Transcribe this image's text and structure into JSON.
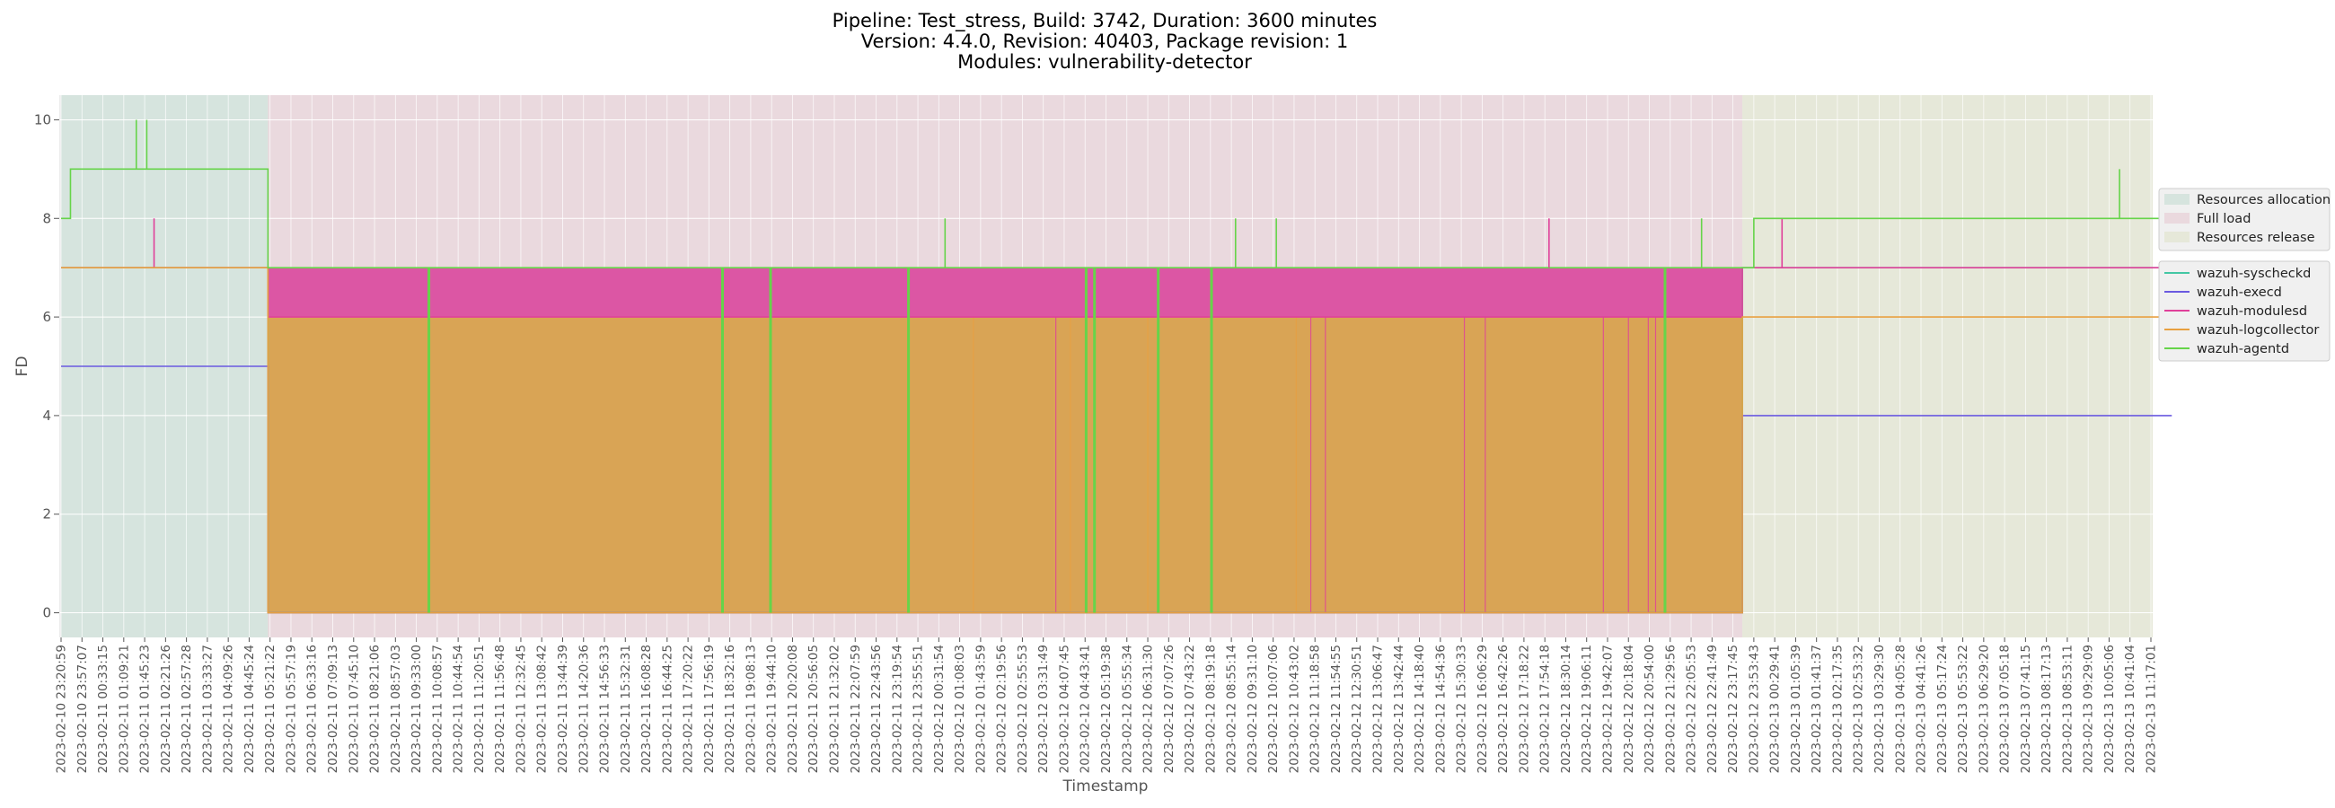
{
  "chart_data": {
    "type": "line",
    "title_lines": [
      "Pipeline: Test_stress, Build: 3742, Duration: 3600 minutes",
      "Version: 4.4.0, Revision: 40403, Package revision: 1",
      "Modules: vulnerability-detector"
    ],
    "xlabel": "Timestamp",
    "ylabel": "FD",
    "ylim": [
      -0.5,
      10.5
    ],
    "yticks": [
      0,
      2,
      4,
      6,
      8,
      10
    ],
    "grid": true,
    "x_tick_labels": [
      "2023-02-10 23:20:59",
      "2023-02-10 23:57:07",
      "2023-02-11 00:33:15",
      "2023-02-11 01:09:21",
      "2023-02-11 01:45:23",
      "2023-02-11 02:21:26",
      "2023-02-11 02:57:28",
      "2023-02-11 03:33:27",
      "2023-02-11 04:09:26",
      "2023-02-11 04:45:24",
      "2023-02-11 05:21:22",
      "2023-02-11 05:57:19",
      "2023-02-11 06:33:16",
      "2023-02-11 07:09:13",
      "2023-02-11 07:45:10",
      "2023-02-11 08:21:06",
      "2023-02-11 08:57:03",
      "2023-02-11 09:33:00",
      "2023-02-11 10:08:57",
      "2023-02-11 10:44:54",
      "2023-02-11 11:20:51",
      "2023-02-11 11:56:48",
      "2023-02-11 12:32:45",
      "2023-02-11 13:08:42",
      "2023-02-11 13:44:39",
      "2023-02-11 14:20:36",
      "2023-02-11 14:56:33",
      "2023-02-11 15:32:31",
      "2023-02-11 16:08:28",
      "2023-02-11 16:44:25",
      "2023-02-11 17:20:22",
      "2023-02-11 17:56:19",
      "2023-02-11 18:32:16",
      "2023-02-11 19:08:13",
      "2023-02-11 19:44:10",
      "2023-02-11 20:20:08",
      "2023-02-11 20:56:05",
      "2023-02-11 21:32:02",
      "2023-02-11 22:07:59",
      "2023-02-11 22:43:56",
      "2023-02-11 23:19:54",
      "2023-02-11 23:55:51",
      "2023-02-12 00:31:54",
      "2023-02-12 01:08:03",
      "2023-02-12 01:43:59",
      "2023-02-12 02:19:56",
      "2023-02-12 02:55:53",
      "2023-02-12 03:31:49",
      "2023-02-12 04:07:45",
      "2023-02-12 04:43:41",
      "2023-02-12 05:19:38",
      "2023-02-12 05:55:34",
      "2023-02-12 06:31:30",
      "2023-02-12 07:07:26",
      "2023-02-12 07:43:22",
      "2023-02-12 08:19:18",
      "2023-02-12 08:55:14",
      "2023-02-12 09:31:10",
      "2023-02-12 10:07:06",
      "2023-02-12 10:43:02",
      "2023-02-12 11:18:58",
      "2023-02-12 11:54:55",
      "2023-02-12 12:30:51",
      "2023-02-12 13:06:47",
      "2023-02-12 13:42:44",
      "2023-02-12 14:18:40",
      "2023-02-12 14:54:36",
      "2023-02-12 15:30:33",
      "2023-02-12 16:06:29",
      "2023-02-12 16:42:26",
      "2023-02-12 17:18:22",
      "2023-02-12 17:54:18",
      "2023-02-12 18:30:14",
      "2023-02-12 19:06:11",
      "2023-02-12 19:42:07",
      "2023-02-12 20:18:04",
      "2023-02-12 20:54:00",
      "2023-02-12 21:29:56",
      "2023-02-12 22:05:53",
      "2023-02-12 22:41:49",
      "2023-02-12 23:17:45",
      "2023-02-12 23:53:43",
      "2023-02-13 00:29:41",
      "2023-02-13 01:05:39",
      "2023-02-13 01:41:37",
      "2023-02-13 02:17:35",
      "2023-02-13 02:53:32",
      "2023-02-13 03:29:30",
      "2023-02-13 04:05:28",
      "2023-02-13 04:41:26",
      "2023-02-13 05:17:24",
      "2023-02-13 05:53:22",
      "2023-02-13 06:29:20",
      "2023-02-13 07:05:18",
      "2023-02-13 07:41:15",
      "2023-02-13 08:17:13",
      "2023-02-13 08:53:11",
      "2023-02-13 09:29:09",
      "2023-02-13 10:05:06",
      "2023-02-13 10:41:04",
      "2023-02-13 11:17:01"
    ],
    "phases": [
      {
        "name": "Resources allocation",
        "start_tick": 0,
        "end_tick": 9.9,
        "color": "#d6e4de"
      },
      {
        "name": "Full load",
        "start_tick": 9.9,
        "end_tick": 80.45,
        "color": "#ead9de"
      },
      {
        "name": "Resources release",
        "start_tick": 80.45,
        "end_tick": 101,
        "color": "#e6e8d9"
      }
    ],
    "phase_legend": [
      "Resources allocation",
      "Full load",
      "Resources release"
    ],
    "series": [
      {
        "name": "wazuh-syscheckd",
        "color": "#43c7a4",
        "points": [
          [
            0,
            7
          ],
          [
            9.9,
            7
          ],
          [
            9.9,
            0
          ],
          [
            80.45,
            0
          ],
          [
            80.45,
            7
          ],
          [
            101,
            7
          ]
        ]
      },
      {
        "name": "wazuh-execd",
        "color": "#6a5ae0",
        "points": [
          [
            0,
            5
          ],
          [
            9.9,
            5
          ],
          [
            9.9,
            0
          ],
          [
            80.45,
            0
          ],
          [
            80.45,
            4
          ],
          [
            101,
            4
          ]
        ]
      },
      {
        "name": "wazuh-modulesd",
        "color": "#e0409a",
        "points": [
          [
            0,
            7
          ],
          [
            4.45,
            7
          ],
          [
            4.45,
            8
          ],
          [
            4.45,
            7
          ],
          [
            9.9,
            7
          ],
          [
            9.9,
            6
          ],
          [
            80.45,
            6
          ],
          [
            80.45,
            7
          ],
          [
            82.35,
            7
          ],
          [
            82.35,
            8
          ],
          [
            82.35,
            7
          ],
          [
            101,
            7
          ]
        ]
      },
      {
        "name": "wazuh-logcollector",
        "color": "#e8a040",
        "points": [
          [
            0,
            7
          ],
          [
            9.9,
            7
          ],
          [
            9.9,
            0
          ],
          [
            80.45,
            0
          ],
          [
            80.45,
            6
          ],
          [
            101,
            6
          ]
        ]
      },
      {
        "name": "wazuh-agentd",
        "color": "#66d44a",
        "points": [
          [
            0,
            8
          ],
          [
            0.45,
            8
          ],
          [
            0.45,
            9
          ],
          [
            3.6,
            9
          ],
          [
            3.6,
            10
          ],
          [
            3.6,
            9
          ],
          [
            4.1,
            9
          ],
          [
            4.1,
            10
          ],
          [
            4.1,
            9
          ],
          [
            9.9,
            9
          ],
          [
            9.9,
            7
          ],
          [
            80.45,
            7
          ],
          [
            81,
            7
          ],
          [
            81,
            8
          ],
          [
            98.5,
            8
          ],
          [
            98.5,
            9
          ],
          [
            98.5,
            8
          ],
          [
            101,
            8
          ]
        ]
      }
    ],
    "band_overlays": [
      {
        "series": "wazuh-modulesd",
        "y0": 6,
        "y1": 7,
        "start_tick": 9.9,
        "end_tick": 80.45,
        "color": "#dc56a4"
      },
      {
        "series": "wazuh-logcollector",
        "y0": 0,
        "y1": 6,
        "start_tick": 9.9,
        "end_tick": 80.45,
        "color": "#d9a455"
      }
    ],
    "agentd_full_load_dips_to_zero_ticks": [
      17.6,
      31.65,
      33.95,
      40.55,
      49.05,
      49.45,
      52.5,
      55.05,
      76.75
    ],
    "agentd_full_load_spikes_to_8_ticks": [
      42.3,
      56.2,
      58.15,
      78.5
    ],
    "modulesd_full_load_spikes_to_8_ticks": [
      71.2
    ],
    "modulesd_full_load_dips_to_0_ticks": [
      47.6,
      59.8,
      60.5,
      67.15,
      68.15,
      73.8,
      75.0,
      75.95,
      76.3
    ],
    "logcollector_full_load_dips_ticks": [
      43.65,
      48.3,
      52.0,
      59.1
    ]
  }
}
